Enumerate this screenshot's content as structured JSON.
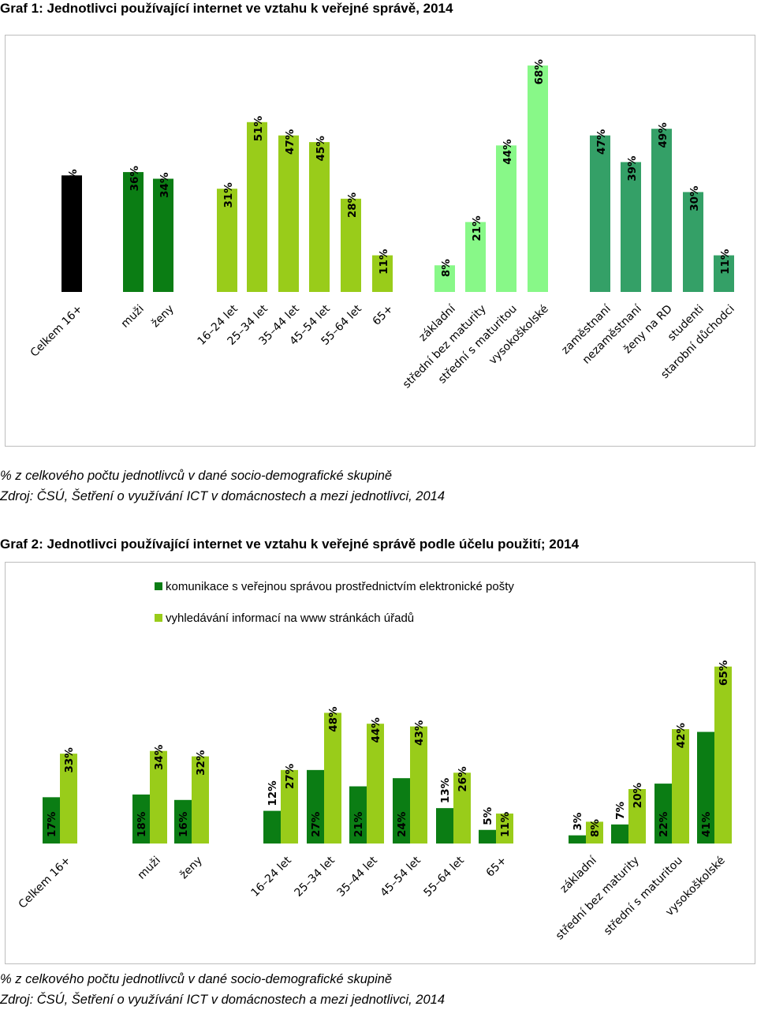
{
  "chart1": {
    "title": "Graf 1: Jednotlivci používající internet ve vztahu k veřejné správě, 2014",
    "note": "% z celkového počtu jednotlivců v dané socio-demografické skupině",
    "source": "Zdroj: ČSÚ, Šetření o využívání ICT v domácnostech a mezi jednotlivci, 2014"
  },
  "chart2": {
    "title": "Graf 2: Jednotlivci používající internet ve vztahu k veřejné správě podle účelu použití; 2014",
    "note": "% z celkového počtu jednotlivců v dané socio-demografické skupině",
    "source": "Zdroj: ČSÚ, Šetření o využívání ICT v domácnostech a mezi jednotlivci, 2014",
    "legend": [
      {
        "label": "komunikace s veřejnou správou prostřednictvím elektronické pošty",
        "color": "#0b7d14"
      },
      {
        "label": "vyhledávání informací na www stránkách úřadů",
        "color": "#99cc1a"
      }
    ]
  },
  "chart_data": [
    {
      "type": "bar",
      "title": "Graf 1: Jednotlivci používající internet ve vztahu k veřejné správě, 2014",
      "ylim": [
        0,
        75
      ],
      "grid": false,
      "categories": [
        "Celkem 16+",
        "muži",
        "ženy",
        "16–24 let",
        "25–34 let",
        "35–44 let",
        "45–54 let",
        "55–64 let",
        "65+",
        "základní",
        "střední bez maturity",
        "střední s maturitou",
        "vysokoškolské",
        "zaměstnaní",
        "nezaměstnaní",
        "ženy na RD",
        "studenti",
        "starobní důchodci"
      ],
      "values": [
        35,
        36,
        34,
        31,
        51,
        47,
        45,
        28,
        11,
        8,
        21,
        44,
        68,
        47,
        39,
        49,
        30,
        11
      ],
      "value_labels": [
        "35%",
        "36%",
        "34%",
        "31%",
        "51%",
        "47%",
        "45%",
        "28%",
        "11%",
        "8%",
        "21%",
        "44%",
        "68%",
        "47%",
        "39%",
        "49%",
        "30%",
        "11%"
      ],
      "colors": [
        "#000000",
        "#0b7d14",
        "#0b7d14",
        "#99cc1a",
        "#99cc1a",
        "#99cc1a",
        "#99cc1a",
        "#99cc1a",
        "#99cc1a",
        "#88f888",
        "#88f888",
        "#88f888",
        "#88f888",
        "#34a067",
        "#34a067",
        "#34a067",
        "#34a067",
        "#34a067"
      ]
    },
    {
      "type": "bar",
      "title": "Graf 2: Jednotlivci používající internet ve vztahu k veřejné správě podle účelu použití; 2014",
      "ylim": [
        0,
        75
      ],
      "grid": false,
      "legend": "top-left",
      "categories": [
        "Celkem 16+",
        "muži",
        "ženy",
        "16–24 let",
        "25–34 let",
        "35–44 let",
        "45–54 let",
        "55–64 let",
        "65+",
        "základní",
        "střední bez maturity",
        "střední s maturitou",
        "vysokoškolské"
      ],
      "series": [
        {
          "name": "komunikace s veřejnou správou prostřednictvím elektronické pošty",
          "color": "#0b7d14",
          "values": [
            17,
            18,
            16,
            12,
            27,
            21,
            24,
            13,
            5,
            3,
            7,
            22,
            41
          ],
          "value_labels": [
            "17%",
            "18%",
            "16%",
            "12%",
            "27%",
            "21%",
            "24%",
            "13%",
            "5%",
            "3%",
            "7%",
            "22%",
            "41%"
          ]
        },
        {
          "name": "vyhledávání informací na www stránkách úřadů",
          "color": "#99cc1a",
          "values": [
            33,
            34,
            32,
            27,
            48,
            44,
            43,
            26,
            11,
            8,
            20,
            42,
            65
          ],
          "value_labels": [
            "33%",
            "34%",
            "32%",
            "27%",
            "48%",
            "44%",
            "43%",
            "26%",
            "11%",
            "8%",
            "20%",
            "42%",
            "65%"
          ]
        }
      ]
    }
  ]
}
